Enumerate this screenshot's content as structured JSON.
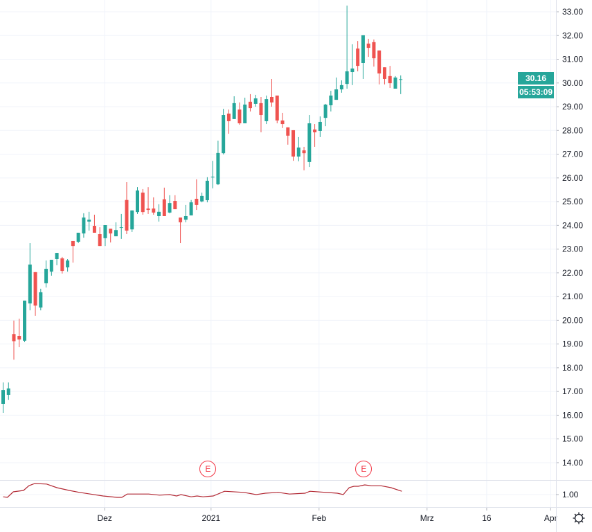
{
  "colors": {
    "up": "#26a69a",
    "down": "#ef5350",
    "grid": "#f0f3fa",
    "ratio_line": "#b22833",
    "earnings": "#f23645"
  },
  "price_tag": {
    "last_price": "30.16",
    "countdown": "05:53:09"
  },
  "earnings_badges": [
    {
      "label": "E",
      "at_index": 38
    },
    {
      "label": "E",
      "at_index": 67
    }
  ],
  "settings_icon": "gear-icon",
  "chart_data": {
    "type": "candlestick",
    "title": "",
    "ylim": [
      13.5,
      33.5
    ],
    "y_ticks": [
      "33.00",
      "32.00",
      "31.00",
      "30.00",
      "29.00",
      "28.00",
      "27.00",
      "26.00",
      "25.00",
      "24.00",
      "23.00",
      "22.00",
      "21.00",
      "20.00",
      "19.00",
      "18.00",
      "17.00",
      "16.00",
      "15.00",
      "14.00"
    ],
    "x_tick_labels": [
      {
        "label": "Dez",
        "at_index": 18.9
      },
      {
        "label": "2021",
        "at_index": 38.7
      },
      {
        "label": "Feb",
        "at_index": 58.8
      },
      {
        "label": "Mrz",
        "at_index": 78.9
      },
      {
        "label": "16",
        "at_index": 90
      },
      {
        "label": "Apr",
        "at_index": 101.9
      }
    ],
    "ohlc": [
      [
        16.48,
        17.38,
        16.1,
        17.06
      ],
      [
        16.86,
        17.38,
        16.65,
        17.13
      ],
      [
        19.42,
        19.99,
        18.34,
        19.12
      ],
      [
        19.34,
        20.07,
        18.87,
        19.19
      ],
      [
        19.14,
        20.83,
        19.08,
        20.83
      ],
      [
        20.71,
        23.25,
        20.42,
        22.35
      ],
      [
        22.03,
        22.03,
        20.19,
        20.62
      ],
      [
        20.54,
        21.33,
        20.42,
        21.18
      ],
      [
        21.56,
        22.52,
        21.38,
        22.17
      ],
      [
        22.05,
        22.55,
        21.88,
        22.55
      ],
      [
        22.58,
        22.84,
        22.32,
        22.84
      ],
      [
        22.61,
        22.67,
        21.97,
        22.08
      ],
      [
        22.23,
        22.58,
        22.05,
        22.52
      ],
      [
        23.34,
        23.34,
        22.43,
        23.13
      ],
      [
        23.31,
        23.69,
        23.25,
        23.69
      ],
      [
        23.66,
        24.51,
        23.48,
        24.33
      ],
      [
        24.16,
        24.57,
        23.78,
        24.24
      ],
      [
        23.98,
        24.45,
        23.69,
        23.69
      ],
      [
        23.63,
        23.92,
        23.13,
        23.13
      ],
      [
        23.46,
        24.01,
        23.13,
        24.01
      ],
      [
        23.86,
        23.86,
        23.28,
        23.66
      ],
      [
        23.54,
        24.13,
        23.54,
        23.8
      ],
      [
        23.9,
        24.48,
        23.43,
        23.92
      ],
      [
        25.07,
        25.82,
        23.63,
        23.78
      ],
      [
        23.83,
        24.63,
        23.72,
        24.63
      ],
      [
        24.56,
        25.61,
        24.48,
        25.47
      ],
      [
        25.38,
        25.53,
        24.45,
        24.56
      ],
      [
        24.71,
        25.61,
        24.48,
        24.65
      ],
      [
        24.71,
        25.18,
        24.45,
        24.54
      ],
      [
        24.39,
        24.89,
        24.16,
        24.57
      ],
      [
        25.1,
        25.59,
        24.39,
        24.39
      ],
      [
        24.54,
        25.27,
        24.51,
        24.94
      ],
      [
        25.03,
        25.27,
        24.68,
        24.68
      ],
      [
        24.33,
        24.33,
        23.25,
        24.13
      ],
      [
        24.24,
        24.86,
        24.13,
        24.39
      ],
      [
        24.42,
        25.07,
        24.42,
        24.97
      ],
      [
        25.12,
        25.94,
        24.65,
        24.86
      ],
      [
        25.01,
        25.38,
        24.97,
        25.24
      ],
      [
        25.06,
        26.03,
        24.97,
        25.88
      ],
      [
        26.02,
        26.72,
        25.56,
        26.05
      ],
      [
        25.73,
        27.57,
        25.7,
        27.05
      ],
      [
        27.04,
        28.91,
        26.99,
        28.65
      ],
      [
        28.71,
        28.88,
        27.86,
        28.39
      ],
      [
        28.48,
        29.44,
        28.48,
        29.15
      ],
      [
        28.88,
        29.18,
        28.24,
        28.3
      ],
      [
        28.3,
        29.38,
        28.3,
        29.09
      ],
      [
        29.21,
        29.53,
        28.8,
        28.94
      ],
      [
        29.12,
        29.5,
        29.0,
        29.35
      ],
      [
        29.15,
        29.41,
        27.92,
        28.65
      ],
      [
        28.39,
        29.47,
        28.27,
        29.32
      ],
      [
        29.41,
        30.17,
        29.0,
        29.18
      ],
      [
        29.47,
        29.47,
        28.3,
        28.42
      ],
      [
        28.42,
        28.74,
        28.1,
        28.27
      ],
      [
        28.13,
        28.13,
        27.4,
        27.78
      ],
      [
        28.01,
        28.01,
        26.72,
        26.9
      ],
      [
        26.9,
        27.72,
        26.7,
        27.28
      ],
      [
        27.16,
        27.31,
        26.32,
        27.04
      ],
      [
        26.67,
        28.65,
        26.46,
        28.3
      ],
      [
        28.04,
        28.27,
        27.31,
        27.92
      ],
      [
        27.98,
        28.59,
        27.72,
        28.36
      ],
      [
        28.53,
        29.12,
        28.18,
        29.09
      ],
      [
        29.06,
        29.67,
        28.8,
        29.47
      ],
      [
        29.29,
        30.23,
        29.29,
        29.73
      ],
      [
        29.73,
        30.11,
        29.59,
        29.91
      ],
      [
        29.96,
        33.26,
        29.76,
        30.49
      ],
      [
        30.46,
        31.63,
        29.91,
        30.61
      ],
      [
        31.45,
        31.77,
        30.49,
        30.72
      ],
      [
        30.84,
        32.01,
        30.17,
        32.01
      ],
      [
        31.66,
        31.86,
        31.1,
        31.48
      ],
      [
        31.72,
        31.83,
        30.69,
        31.04
      ],
      [
        31.37,
        31.37,
        29.94,
        30.4
      ],
      [
        30.66,
        30.66,
        29.94,
        30.17
      ],
      [
        30.29,
        30.72,
        29.79,
        29.99
      ],
      [
        29.76,
        30.29,
        29.76,
        30.23
      ],
      [
        30.14,
        30.32,
        29.53,
        30.16
      ]
    ],
    "ratio_pane": {
      "y_tick": "1.00",
      "points": [
        [
          0,
          0.96
        ],
        [
          0.8,
          0.95
        ],
        [
          1.9,
          1.05
        ],
        [
          3.8,
          1.075
        ],
        [
          4.8,
          1.16
        ],
        [
          5.9,
          1.2
        ],
        [
          8.1,
          1.19
        ],
        [
          10,
          1.125
        ],
        [
          12.3,
          1.075
        ],
        [
          14.2,
          1.04
        ],
        [
          18.6,
          0.975
        ],
        [
          21.2,
          0.95
        ],
        [
          22.1,
          0.95
        ],
        [
          23.1,
          1.01
        ],
        [
          27.1,
          1.01
        ],
        [
          29.1,
          0.99
        ],
        [
          31,
          1.0
        ],
        [
          32.3,
          0.975
        ],
        [
          33.1,
          1.0
        ],
        [
          35,
          0.96
        ],
        [
          36.1,
          0.975
        ],
        [
          37.2,
          0.96
        ],
        [
          39.1,
          0.975
        ],
        [
          41.2,
          1.06
        ],
        [
          44.8,
          1.04
        ],
        [
          47.1,
          1.0
        ],
        [
          48.8,
          1.025
        ],
        [
          51.2,
          1.04
        ],
        [
          53.3,
          1.01
        ],
        [
          56.2,
          1.025
        ],
        [
          57.1,
          1.06
        ],
        [
          62.2,
          1.025
        ],
        [
          63.3,
          1.0
        ],
        [
          64.4,
          1.125
        ],
        [
          65.3,
          1.15
        ],
        [
          66.1,
          1.15
        ],
        [
          67.3,
          1.175
        ],
        [
          68.5,
          1.16
        ],
        [
          70.3,
          1.16
        ],
        [
          72.2,
          1.125
        ],
        [
          74.2,
          1.06
        ]
      ]
    }
  }
}
